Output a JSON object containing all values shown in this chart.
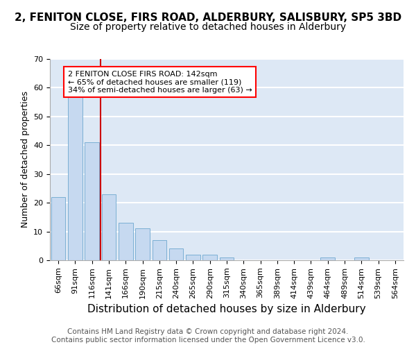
{
  "title1": "2, FENITON CLOSE, FIRS ROAD, ALDERBURY, SALISBURY, SP5 3BD",
  "title2": "Size of property relative to detached houses in Alderbury",
  "xlabel": "Distribution of detached houses by size in Alderbury",
  "ylabel": "Number of detached properties",
  "footer1": "Contains HM Land Registry data © Crown copyright and database right 2024.",
  "footer2": "Contains public sector information licensed under the Open Government Licence v3.0.",
  "bins": [
    "66sqm",
    "91sqm",
    "116sqm",
    "141sqm",
    "166sqm",
    "190sqm",
    "215sqm",
    "240sqm",
    "265sqm",
    "290sqm",
    "315sqm",
    "340sqm",
    "365sqm",
    "389sqm",
    "414sqm",
    "439sqm",
    "464sqm",
    "489sqm",
    "514sqm",
    "539sqm",
    "564sqm"
  ],
  "values": [
    22,
    57,
    41,
    23,
    13,
    11,
    7,
    4,
    2,
    2,
    1,
    0,
    0,
    0,
    0,
    0,
    1,
    0,
    1,
    0,
    0
  ],
  "bar_color": "#c6d9f0",
  "bar_edge_color": "#7bafd4",
  "vline_color": "#cc0000",
  "annotation_text": "2 FENITON CLOSE FIRS ROAD: 142sqm\n← 65% of detached houses are smaller (119)\n34% of semi-detached houses are larger (63) →",
  "annotation_box_color": "white",
  "annotation_box_edgecolor": "red",
  "ylim": [
    0,
    70
  ],
  "yticks": [
    0,
    10,
    20,
    30,
    40,
    50,
    60,
    70
  ],
  "background_color": "#dde8f5",
  "grid_color": "#ffffff",
  "title1_fontsize": 11,
  "title2_fontsize": 10,
  "xlabel_fontsize": 11,
  "ylabel_fontsize": 9,
  "tick_fontsize": 8,
  "annotation_fontsize": 8,
  "footer_fontsize": 7.5
}
